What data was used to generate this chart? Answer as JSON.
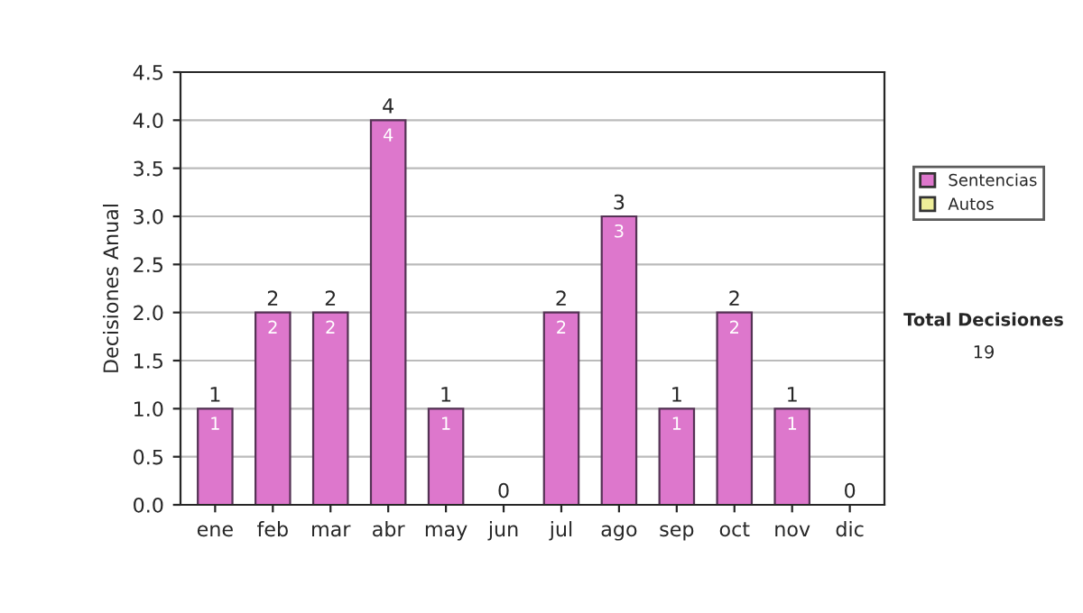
{
  "chart_data": {
    "type": "bar",
    "ylabel": "Decisiones Anual",
    "categories": [
      "ene",
      "feb",
      "mar",
      "abr",
      "may",
      "jun",
      "jul",
      "ago",
      "sep",
      "oct",
      "nov",
      "dic"
    ],
    "series": [
      {
        "name": "Sentencias",
        "color": "#dd77cc",
        "values": [
          1,
          2,
          2,
          4,
          1,
          0,
          2,
          3,
          1,
          2,
          1,
          0
        ],
        "value_labels": [
          "1",
          "2",
          "2",
          "4",
          "1",
          null,
          "2",
          "3",
          "1",
          "2",
          "1",
          null
        ]
      },
      {
        "name": "Autos",
        "color": "#eeee99",
        "values": [
          0,
          0,
          0,
          0,
          0,
          0,
          0,
          0,
          0,
          0,
          0,
          0
        ]
      }
    ],
    "stacked": true,
    "totals": [
      "1",
      "2",
      "2",
      "4",
      "1",
      "0",
      "2",
      "3",
      "1",
      "2",
      "1",
      "0"
    ],
    "ylim": [
      0,
      4.5
    ],
    "yticks": [
      "0.0",
      "0.5",
      "1.0",
      "1.5",
      "2.0",
      "2.5",
      "3.0",
      "3.5",
      "4.0",
      "4.5"
    ],
    "grid": "y",
    "legend": "right",
    "annotations": [
      "Total Decisiones",
      "19"
    ]
  }
}
